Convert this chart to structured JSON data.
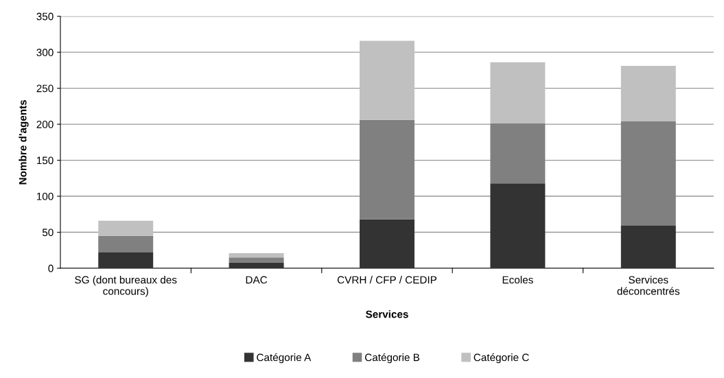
{
  "chart_data": {
    "type": "bar",
    "stacked": true,
    "xlabel": "Services",
    "ylabel": "Nombre d'agents",
    "categories": [
      "SG (dont bureaux des\nconcours)",
      "DAC",
      "CVRH / CFP / CEDIP",
      "Ecoles",
      "Services\ndéconcentrés"
    ],
    "series": [
      {
        "name": "Catégorie A",
        "color": "#333333",
        "values": [
          22,
          8,
          68,
          118,
          59
        ]
      },
      {
        "name": "Catégorie B",
        "color": "#808080",
        "values": [
          23,
          7,
          138,
          83,
          145
        ]
      },
      {
        "name": "Catégorie C",
        "color": "#c0c0c0",
        "values": [
          21,
          6,
          110,
          85,
          77
        ]
      }
    ],
    "ylim": [
      0,
      350
    ],
    "yticks": [
      0,
      50,
      100,
      150,
      200,
      250,
      300,
      350
    ],
    "grid": "y",
    "legend": "bottom"
  }
}
